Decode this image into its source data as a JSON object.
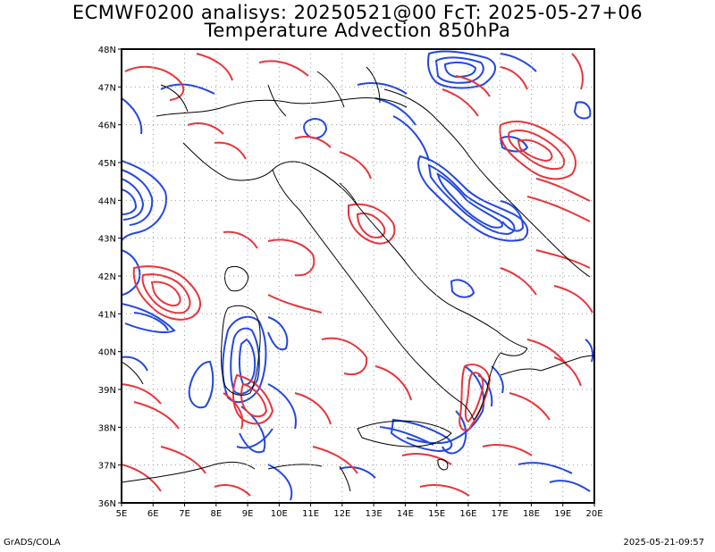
{
  "title_line1": "ECMWF0200 analisys: 20250521@00 FcT: 2025-05-27+06",
  "title_line2": "Temperature Advection 850hPa",
  "lon_labels": [
    "5E",
    "6E",
    "7E",
    "8E",
    "9E",
    "10E",
    "11E",
    "12E",
    "13E",
    "14E",
    "15E",
    "16E",
    "17E",
    "18E",
    "19E",
    "20E"
  ],
  "lat_labels": [
    "48N",
    "47N",
    "46N",
    "45N",
    "44N",
    "43N",
    "42N",
    "41N",
    "40N",
    "39N",
    "38N",
    "37N",
    "36N"
  ],
  "extent": {
    "lon_min": 5,
    "lon_max": 20,
    "lat_min": 36,
    "lat_max": 48
  },
  "colors": {
    "positive": "#e8353b",
    "negative": "#2348e0",
    "coast": "#000000",
    "grid": "#9a9a9a"
  },
  "footer": {
    "credit": "GrADS/COLA",
    "timestamp": "2025-05-21-09:57"
  }
}
